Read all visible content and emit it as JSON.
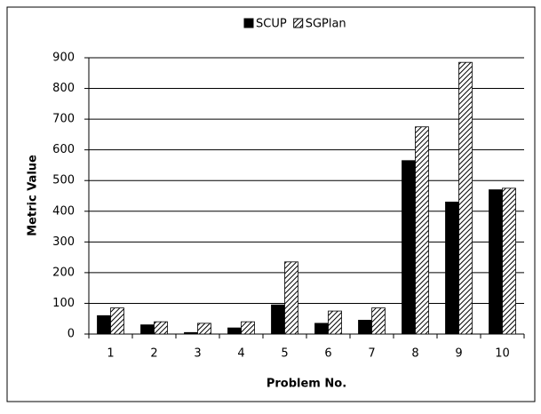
{
  "chart_data": {
    "type": "bar",
    "xlabel": "Problem No.",
    "ylabel": "Metric Value",
    "categories": [
      "1",
      "2",
      "3",
      "4",
      "5",
      "6",
      "7",
      "8",
      "9",
      "10"
    ],
    "series": [
      {
        "name": "SCUP",
        "color": "#000000",
        "hatch": false,
        "values": [
          60,
          30,
          5,
          20,
          95,
          35,
          45,
          565,
          430,
          470
        ]
      },
      {
        "name": "SGPlan",
        "color": "#000000",
        "hatch": true,
        "values": [
          85,
          40,
          35,
          40,
          235,
          75,
          85,
          675,
          885,
          475
        ]
      }
    ],
    "ylim": [
      0,
      900
    ],
    "yticks": [
      0,
      100,
      200,
      300,
      400,
      500,
      600,
      700,
      800,
      900
    ],
    "grid": true,
    "legend": "top"
  }
}
